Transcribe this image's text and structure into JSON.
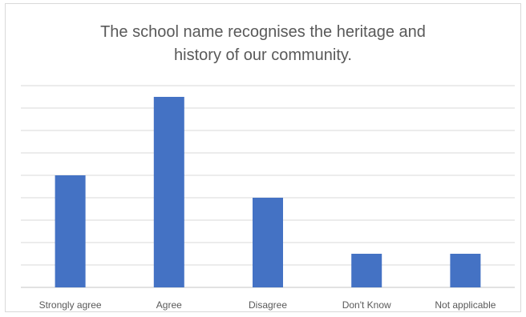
{
  "chart_data": {
    "type": "bar",
    "title_lines": [
      "The school name recognises the heritage and",
      "history of our community."
    ],
    "categories": [
      "Strongly agree",
      "Agree",
      "Disagree",
      "Don't Know",
      "Not applicable"
    ],
    "values": [
      5,
      8.5,
      4,
      1.5,
      1.5
    ],
    "xlabel": "",
    "ylabel": "",
    "ylim": [
      0,
      9
    ],
    "grid": true,
    "legend": "none",
    "bar_color": "#4472c4",
    "grid_color": "#d9d9d9"
  }
}
